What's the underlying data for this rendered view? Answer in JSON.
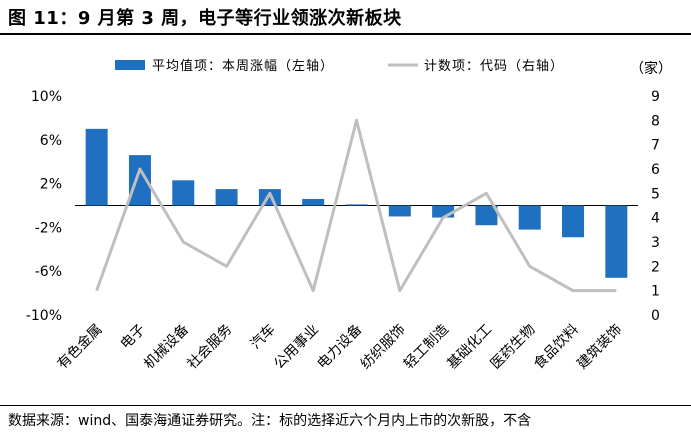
{
  "figure": {
    "title": "图 11：9 月第 3 周，电子等行业领涨次新板块",
    "source_note": "数据来源：wind、国泰海通证券研究。注：标的选择近六个月内上市的次新股，不含"
  },
  "chart_data": {
    "type": "bar+line",
    "categories": [
      "有色金属",
      "电子",
      "机械设备",
      "社会服务",
      "汽车",
      "公用事业",
      "电力设备",
      "纺织服饰",
      "轻工制造",
      "基础化工",
      "医药生物",
      "食品饮料",
      "建筑装饰"
    ],
    "series": [
      {
        "name": "平均值项：本周涨幅（左轴）",
        "type": "bar",
        "axis": "left",
        "color": "#1f70c1",
        "values": [
          7.0,
          4.6,
          2.3,
          1.5,
          1.5,
          0.6,
          0.1,
          -1.0,
          -1.1,
          -1.8,
          -2.2,
          -2.9,
          -6.6
        ]
      },
      {
        "name": "计数项：代码（右轴）",
        "type": "line",
        "axis": "right",
        "color": "#bfbfbf",
        "values": [
          1,
          6,
          3,
          2,
          5,
          1,
          8,
          1,
          4,
          5,
          2,
          1,
          1
        ]
      }
    ],
    "left_axis": {
      "ticks": [
        "10%",
        "6%",
        "2%",
        "-2%",
        "-6%",
        "-10%"
      ],
      "ylim": [
        -10,
        10
      ],
      "tick_values": [
        10,
        6,
        2,
        -2,
        -6,
        -10
      ]
    },
    "right_axis": {
      "ticks": [
        "9",
        "8",
        "7",
        "6",
        "5",
        "4",
        "3",
        "2",
        "1",
        "0"
      ],
      "ylim": [
        0,
        9
      ],
      "tick_values": [
        9,
        8,
        7,
        6,
        5,
        4,
        3,
        2,
        1,
        0
      ],
      "unit": "（家）"
    },
    "legend_position": "top-center",
    "grid": false
  }
}
